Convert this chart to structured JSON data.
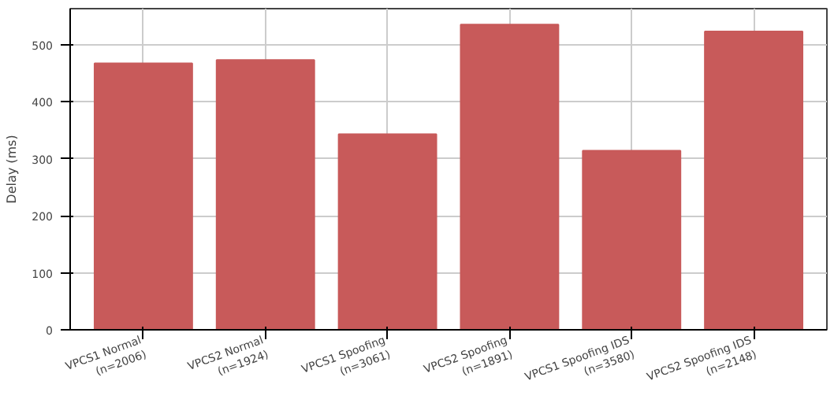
{
  "chart_data": {
    "type": "bar",
    "ylabel": "Delay (ms)",
    "categories": [
      "VPCS1 Normal\n(n=2006)",
      "VPCS2 Normal\n(n=1924)",
      "VPCS1 Spoofing\n(n=3061)",
      "VPCS2 Spoofing\n(n=1891)",
      "VPCS1 Spoofing IDS\n(n=3580)",
      "VPCS2 Spoofing IDS\n(n=2148)"
    ],
    "values": [
      467,
      473,
      343,
      535,
      314,
      523
    ],
    "color": "#c85a5a",
    "ylim": [
      0,
      563
    ],
    "yticks": [
      0,
      100,
      200,
      300,
      400,
      500
    ],
    "grid": true
  }
}
